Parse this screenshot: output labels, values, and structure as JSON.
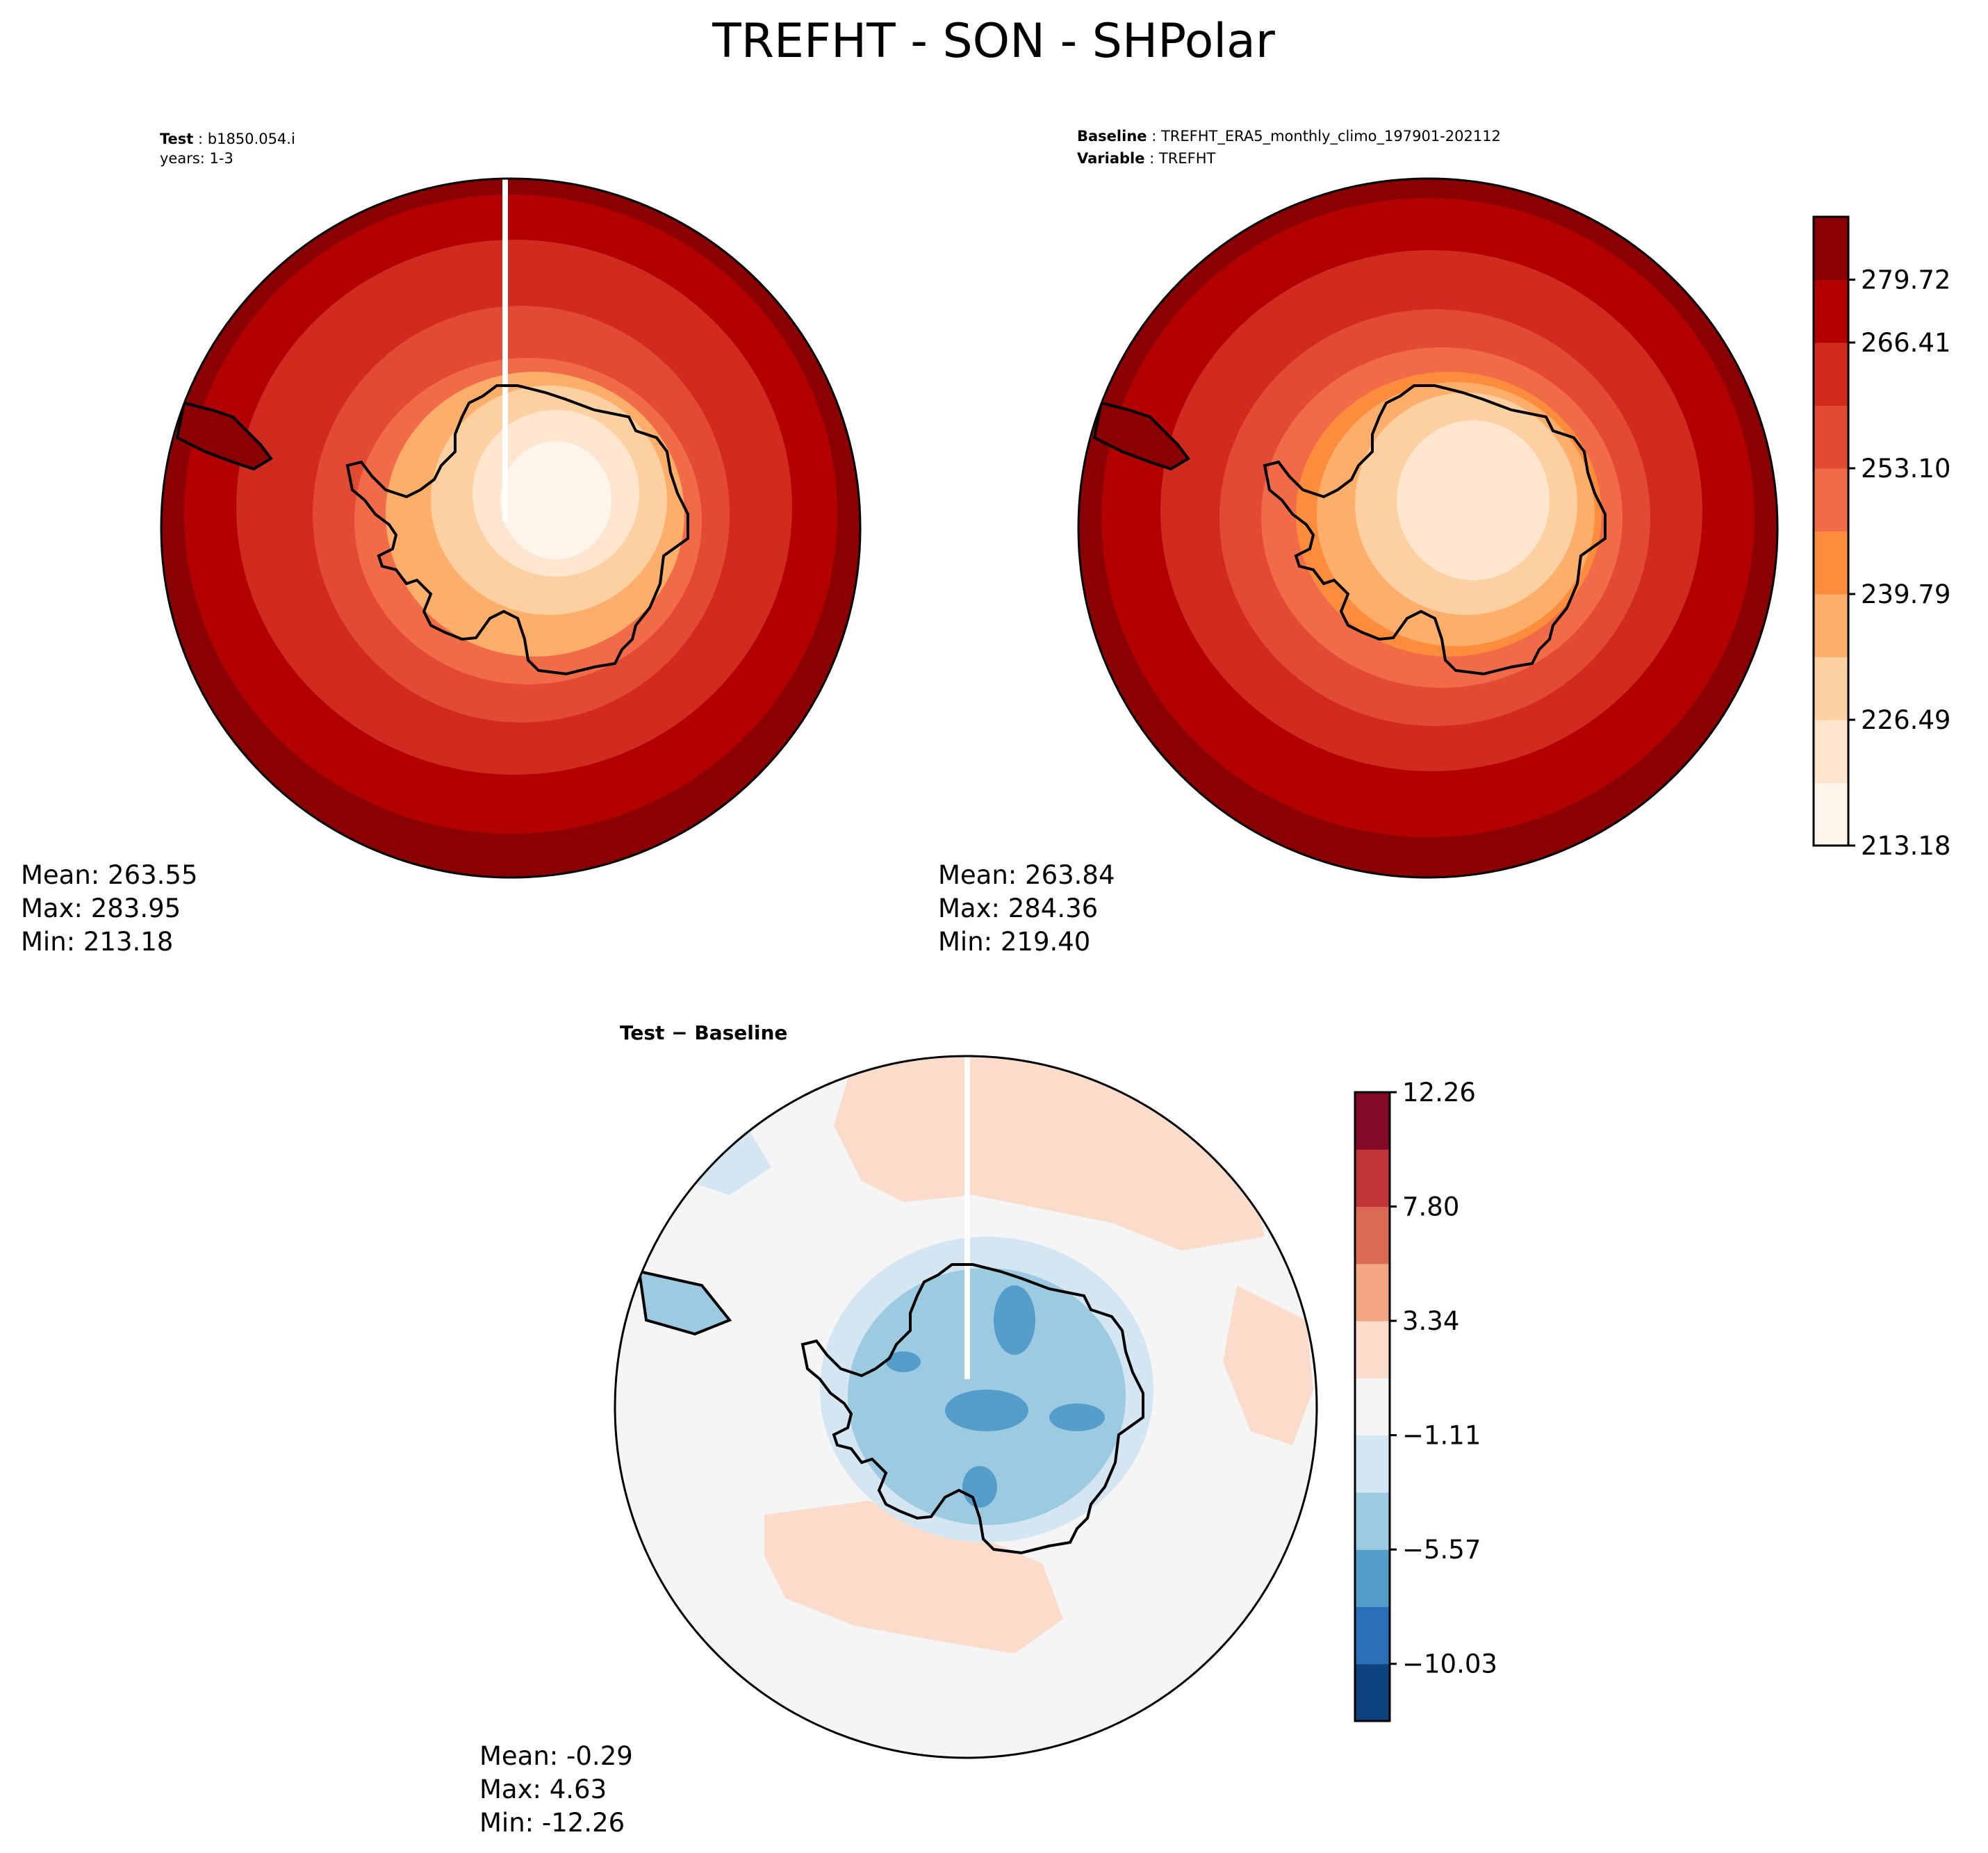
{
  "figure": {
    "title": "TREFHT - SON - SHPolar"
  },
  "panels": [
    {
      "id": "test",
      "header": [
        {
          "label": "Test",
          "value": "b1850.054.i"
        },
        {
          "label": "",
          "value": "years: 1-3"
        }
      ],
      "stats": {
        "mean": "Mean: 263.55",
        "max": "Max: 283.95",
        "min": "Min: 213.18"
      }
    },
    {
      "id": "baseline",
      "header": [
        {
          "label": "Baseline",
          "value": "TREFHT_ERA5_monthly_climo_197901-202112"
        },
        {
          "label": "Variable",
          "value": "TREFHT"
        }
      ],
      "stats": {
        "mean": "Mean: 263.84",
        "max": "Max: 284.36",
        "min": "Min: 219.40"
      }
    },
    {
      "id": "diff",
      "header": [
        {
          "label": "Test − Baseline",
          "value": ""
        }
      ],
      "stats": {
        "mean": "Mean: -0.29",
        "max": "Max:  4.63",
        "min": "Min: -12.26"
      }
    }
  ],
  "colorbars": {
    "temperature": {
      "ticks": [
        "213.18",
        "226.49",
        "239.79",
        "253.10",
        "266.41",
        "279.72"
      ],
      "colors": [
        "#fff5eb",
        "#fee6ce",
        "#fdd0a2",
        "#fdae6b",
        "#fd8d3c",
        "#f16b48",
        "#e34a33",
        "#d12a1f",
        "#b30000",
        "#8b0000"
      ]
    },
    "difference": {
      "ticks": [
        "−10.03",
        "−5.57",
        "−1.11",
        "3.34",
        "7.80",
        "12.26"
      ],
      "colors": [
        "#0d437f",
        "#2a70b8",
        "#559ecb",
        "#9ccae1",
        "#d3e6f1",
        "#f5f5f5",
        "#fbdbca",
        "#f4a582",
        "#db6a55",
        "#c23638",
        "#820a26"
      ]
    }
  }
}
